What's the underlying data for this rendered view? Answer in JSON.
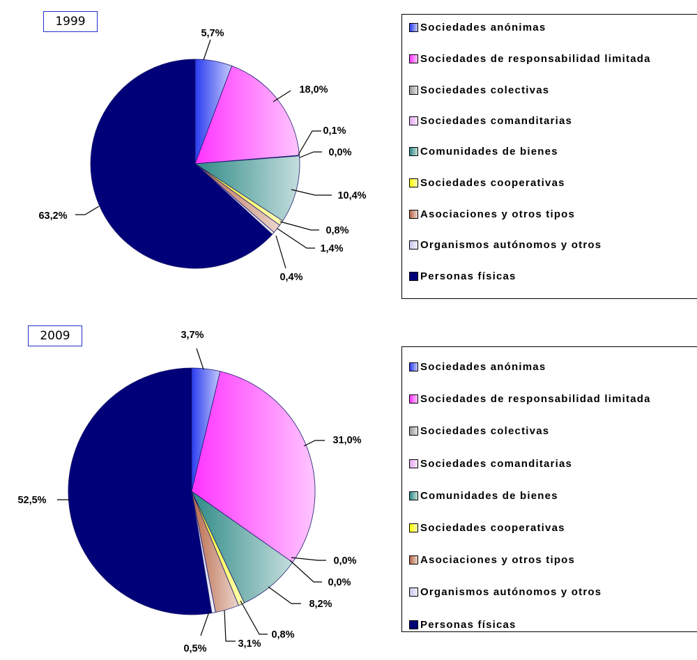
{
  "chart_data": [
    {
      "type": "pie",
      "title": "1999",
      "categories": [
        "Sociedades anónimas",
        "Sociedades de responsabilidad limitada",
        "Sociedades colectivas",
        "Sociedades comanditarias",
        "Comunidades de bienes",
        "Sociedades cooperativas",
        "Asociaciones y otros tipos",
        "Organismos autónomos y otros",
        "Personas físicas"
      ],
      "values": [
        5.7,
        18.0,
        0.1,
        0.0,
        10.4,
        0.8,
        1.4,
        0.4,
        63.2
      ],
      "labels": [
        "5,7%",
        "18,0%",
        "0,1%",
        "0,0%",
        "10,4%",
        "0,8%",
        "1,4%",
        "0,4%",
        "63,2%"
      ],
      "legend": "right"
    },
    {
      "type": "pie",
      "title": "2009",
      "categories": [
        "Sociedades anónimas",
        "Sociedades de responsabilidad limitada",
        "Sociedades colectivas",
        "Sociedades comanditarias",
        "Comunidades de bienes",
        "Sociedades cooperativas",
        "Asociaciones y otros tipos",
        "Organismos autónomos y otros",
        "Personas físicas"
      ],
      "values": [
        3.7,
        31.0,
        0.0,
        0.0,
        8.2,
        0.8,
        3.1,
        0.5,
        52.5
      ],
      "labels": [
        "3,7%",
        "31,0%",
        "0,0%",
        "0,0%",
        "8,2%",
        "0,8%",
        "3,1%",
        "0,5%",
        "52,5%"
      ],
      "legend": "right"
    }
  ],
  "colors": [
    "#2b3df0",
    "#ff33ff",
    "#9a9a9a",
    "#e5a8f2",
    "#2e8a86",
    "#ffff00",
    "#b86848",
    "#c8c8ee",
    "#000078"
  ]
}
